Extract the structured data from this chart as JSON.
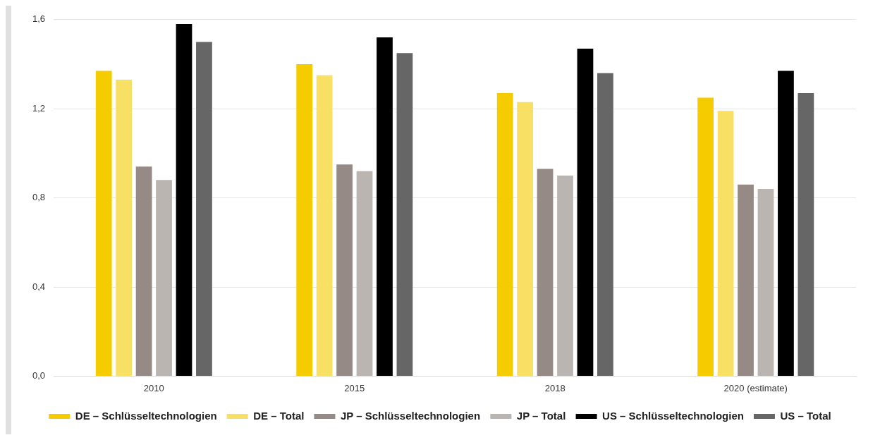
{
  "chart_data": {
    "type": "bar",
    "categories": [
      "2010",
      "2015",
      "2018",
      "2020 (estimate)"
    ],
    "series": [
      {
        "name": "DE – Schlüsseltechnologien",
        "color": "#f5cc00",
        "values": [
          1.37,
          1.4,
          1.27,
          1.25
        ]
      },
      {
        "name": "DE – Total",
        "color": "#f7e064",
        "values": [
          1.33,
          1.35,
          1.23,
          1.19
        ]
      },
      {
        "name": "JP – Schlüsseltechnologien",
        "color": "#958a85",
        "values": [
          0.94,
          0.95,
          0.93,
          0.86
        ]
      },
      {
        "name": "JP – Total",
        "color": "#bbb5b1",
        "values": [
          0.88,
          0.92,
          0.9,
          0.84
        ]
      },
      {
        "name": "US – Schlüsseltechnologien",
        "color": "#000000",
        "values": [
          1.58,
          1.52,
          1.47,
          1.37
        ]
      },
      {
        "name": "US – Total",
        "color": "#666666",
        "values": [
          1.5,
          1.45,
          1.36,
          1.27
        ]
      }
    ],
    "ylim": [
      0,
      1.6
    ],
    "yticks": [
      {
        "value": 0,
        "label": "0,0"
      },
      {
        "value": 0.4,
        "label": "0,4"
      },
      {
        "value": 0.8,
        "label": "0,8"
      },
      {
        "value": 1.2,
        "label": "1,2"
      },
      {
        "value": 1.6,
        "label": "1,6"
      }
    ],
    "grid": "y",
    "legend": "bottom"
  }
}
